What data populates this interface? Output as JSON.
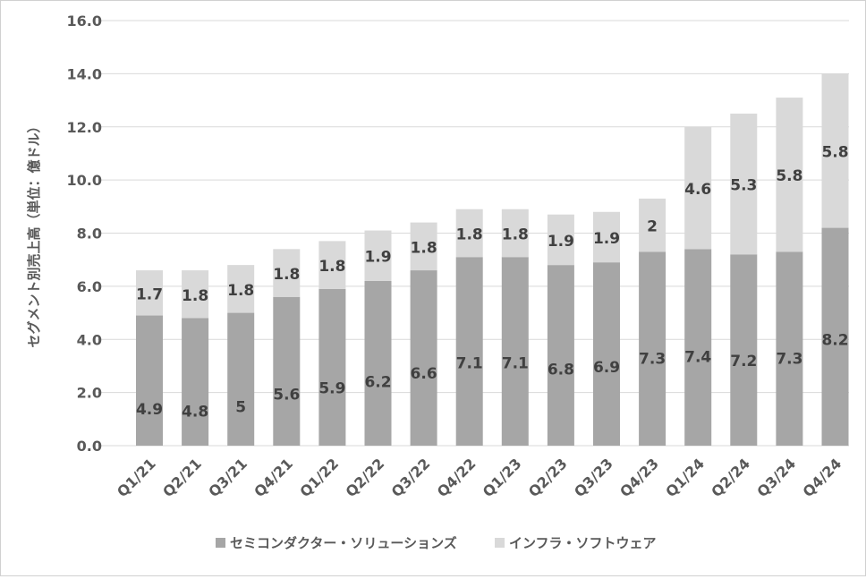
{
  "chart_data": {
    "type": "bar",
    "stacked": true,
    "title": "",
    "xlabel": "",
    "ylabel": "セグメント別売上高（単位：億ドル）",
    "ylim": [
      0,
      16
    ],
    "yticks": [
      "0.0",
      "2.0",
      "4.0",
      "6.0",
      "8.0",
      "10.0",
      "12.0",
      "14.0",
      "16.0"
    ],
    "grid": true,
    "legend_position": "bottom",
    "categories": [
      "Q1/21",
      "Q2/21",
      "Q3/21",
      "Q4/21",
      "Q1/22",
      "Q2/22",
      "Q3/22",
      "Q4/22",
      "Q1/23",
      "Q2/23",
      "Q3/23",
      "Q4/23",
      "Q1/24",
      "Q2/24",
      "Q3/24",
      "Q4/24"
    ],
    "series": [
      {
        "name": "セミコンダクター・ソリューションズ",
        "color": "#a6a6a6",
        "values": [
          4.9,
          4.8,
          5.0,
          5.6,
          5.9,
          6.2,
          6.6,
          7.1,
          7.1,
          6.8,
          6.9,
          7.3,
          7.4,
          7.2,
          7.3,
          8.2
        ]
      },
      {
        "name": "インフラ・ソフトウェア",
        "color": "#d9d9d9",
        "values": [
          1.7,
          1.8,
          1.8,
          1.8,
          1.8,
          1.9,
          1.8,
          1.8,
          1.8,
          1.9,
          1.9,
          2.0,
          4.6,
          5.3,
          5.8,
          5.8
        ]
      }
    ]
  }
}
